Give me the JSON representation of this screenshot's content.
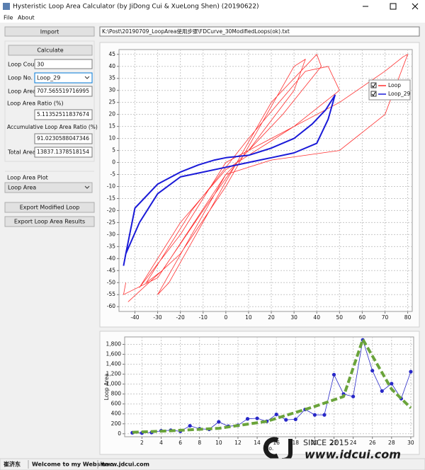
{
  "window": {
    "title": "Hysteristic Loop Area Calculator (by JiDong Cui & XueLong Shen) (20190622)"
  },
  "menu": [
    "File",
    "About"
  ],
  "toolbar": {
    "import": "Import",
    "file_path": "K:\\Post\\20190709_LoopArea使用步骤\\FDCurve_30ModifiedLoops(ok).txt"
  },
  "panel": {
    "calculate": "Calculate",
    "loop_count": {
      "label": "Loop Count",
      "value": "30"
    },
    "loop_no": {
      "label": "Loop No.",
      "value": "Loop_29"
    },
    "loop_area": {
      "label": "Loop Area",
      "value": "707.565519716995"
    },
    "loop_area_ratio": {
      "label": "Loop Area Ratio (%)",
      "value": "5.11352511837674"
    },
    "accumulative_ratio": {
      "label": "Accumulative Loop Area Ratio (%)",
      "value": "91.0230588047346"
    },
    "total_area": {
      "label": "Total Area",
      "value": "13837.1378518154"
    },
    "plot_label": "Loop Area Plot",
    "plot_choice": "Loop Area",
    "export_loop": "Export Modified Loop",
    "export_results": "Export Loop Area Results"
  },
  "status": [
    "崔济东",
    "Welcome to my Website :",
    "www.jdcui.com"
  ],
  "watermark": {
    "since": "SINCE 2015",
    "site": "www.jdcui.com"
  },
  "chart_data": [
    {
      "type": "line",
      "grid": true,
      "legend": "upper right",
      "xlim": [
        -47,
        82
      ],
      "ylim": [
        -62,
        47
      ],
      "xticks": [
        -40,
        -30,
        -20,
        -10,
        0,
        10,
        20,
        30,
        40,
        50,
        60,
        70,
        80
      ],
      "yticks": [
        -60,
        -55,
        -50,
        -45,
        -40,
        -35,
        -30,
        -25,
        -20,
        -15,
        -10,
        -5,
        0,
        5,
        10,
        15,
        20,
        25,
        30,
        35,
        40,
        45
      ],
      "series": [
        {
          "name": "Loop",
          "color": "#ff3030",
          "x": [
            -43,
            -20,
            0,
            15,
            30,
            35,
            30,
            10,
            0,
            -15,
            -30,
            -25,
            0,
            20,
            40,
            42,
            25,
            5,
            -10,
            -28,
            -35,
            -15,
            10,
            35,
            45,
            50,
            30,
            0,
            -20,
            -38,
            -20,
            0,
            20,
            50,
            70,
            78,
            80,
            70,
            50,
            20,
            0,
            -30,
            -45,
            -44
          ],
          "values": [
            -58,
            -38,
            -10,
            15,
            40,
            43,
            30,
            5,
            -5,
            -30,
            -55,
            -50,
            -8,
            25,
            45,
            40,
            20,
            0,
            -20,
            -45,
            -50,
            -20,
            10,
            38,
            40,
            30,
            15,
            -3,
            -25,
            -52,
            -30,
            0,
            10,
            25,
            38,
            44,
            45,
            20,
            5,
            1,
            -5,
            -48,
            -55,
            -50
          ]
        },
        {
          "name": "Loop_29",
          "color": "#1a1ad8",
          "x": [
            -45,
            -44,
            -40,
            -30,
            -20,
            -12,
            -5,
            0,
            10,
            20,
            30,
            38,
            44,
            48,
            45,
            40,
            30,
            20,
            10,
            0,
            -10,
            -20,
            -30,
            -38,
            -44
          ],
          "values": [
            -43,
            -38,
            -19,
            -9,
            -4,
            -1,
            1,
            2,
            3,
            6,
            10,
            16,
            22,
            28,
            18,
            8,
            4,
            2,
            0,
            -2,
            -4,
            -6,
            -13,
            -25,
            -38
          ]
        }
      ]
    },
    {
      "type": "line",
      "grid": true,
      "ylabel": "Loop Area",
      "xlabel": "No.",
      "xlim": [
        0.2,
        30.3
      ],
      "ylim": [
        -60,
        1950
      ],
      "xticks": [
        2,
        4,
        6,
        8,
        10,
        12,
        14,
        16,
        18,
        20,
        22,
        24,
        26,
        28,
        30
      ],
      "yticks": [
        0,
        200,
        400,
        600,
        800,
        {
          "value": 1000,
          "label": "1,000"
        },
        {
          "value": 1200,
          "label": "1,200"
        },
        {
          "value": 1400,
          "label": "1,400"
        },
        {
          "value": 1600,
          "label": "1,600"
        },
        {
          "value": 1800,
          "label": "1,800"
        }
      ],
      "series": [
        {
          "color": "#2828c8",
          "markers": true,
          "x": [
            1,
            2,
            3,
            4,
            5,
            6,
            7,
            8,
            9,
            10,
            11,
            12,
            13,
            14,
            15,
            16,
            17,
            18,
            19,
            20,
            21,
            22,
            23,
            24,
            25,
            26,
            27,
            28,
            29,
            30
          ],
          "values": [
            20,
            15,
            25,
            60,
            70,
            50,
            160,
            100,
            90,
            240,
            150,
            170,
            300,
            310,
            250,
            390,
            280,
            290,
            490,
            380,
            380,
            1190,
            800,
            750,
            1890,
            1270,
            860,
            1010,
            708,
            1250
          ]
        },
        {
          "color": "#6aa33a",
          "dashed": true,
          "x": [
            1,
            5,
            10,
            15,
            20,
            23,
            25,
            28,
            30
          ],
          "values": [
            30,
            60,
            110,
            250,
            550,
            750,
            1900,
            900,
            520
          ]
        }
      ]
    }
  ]
}
